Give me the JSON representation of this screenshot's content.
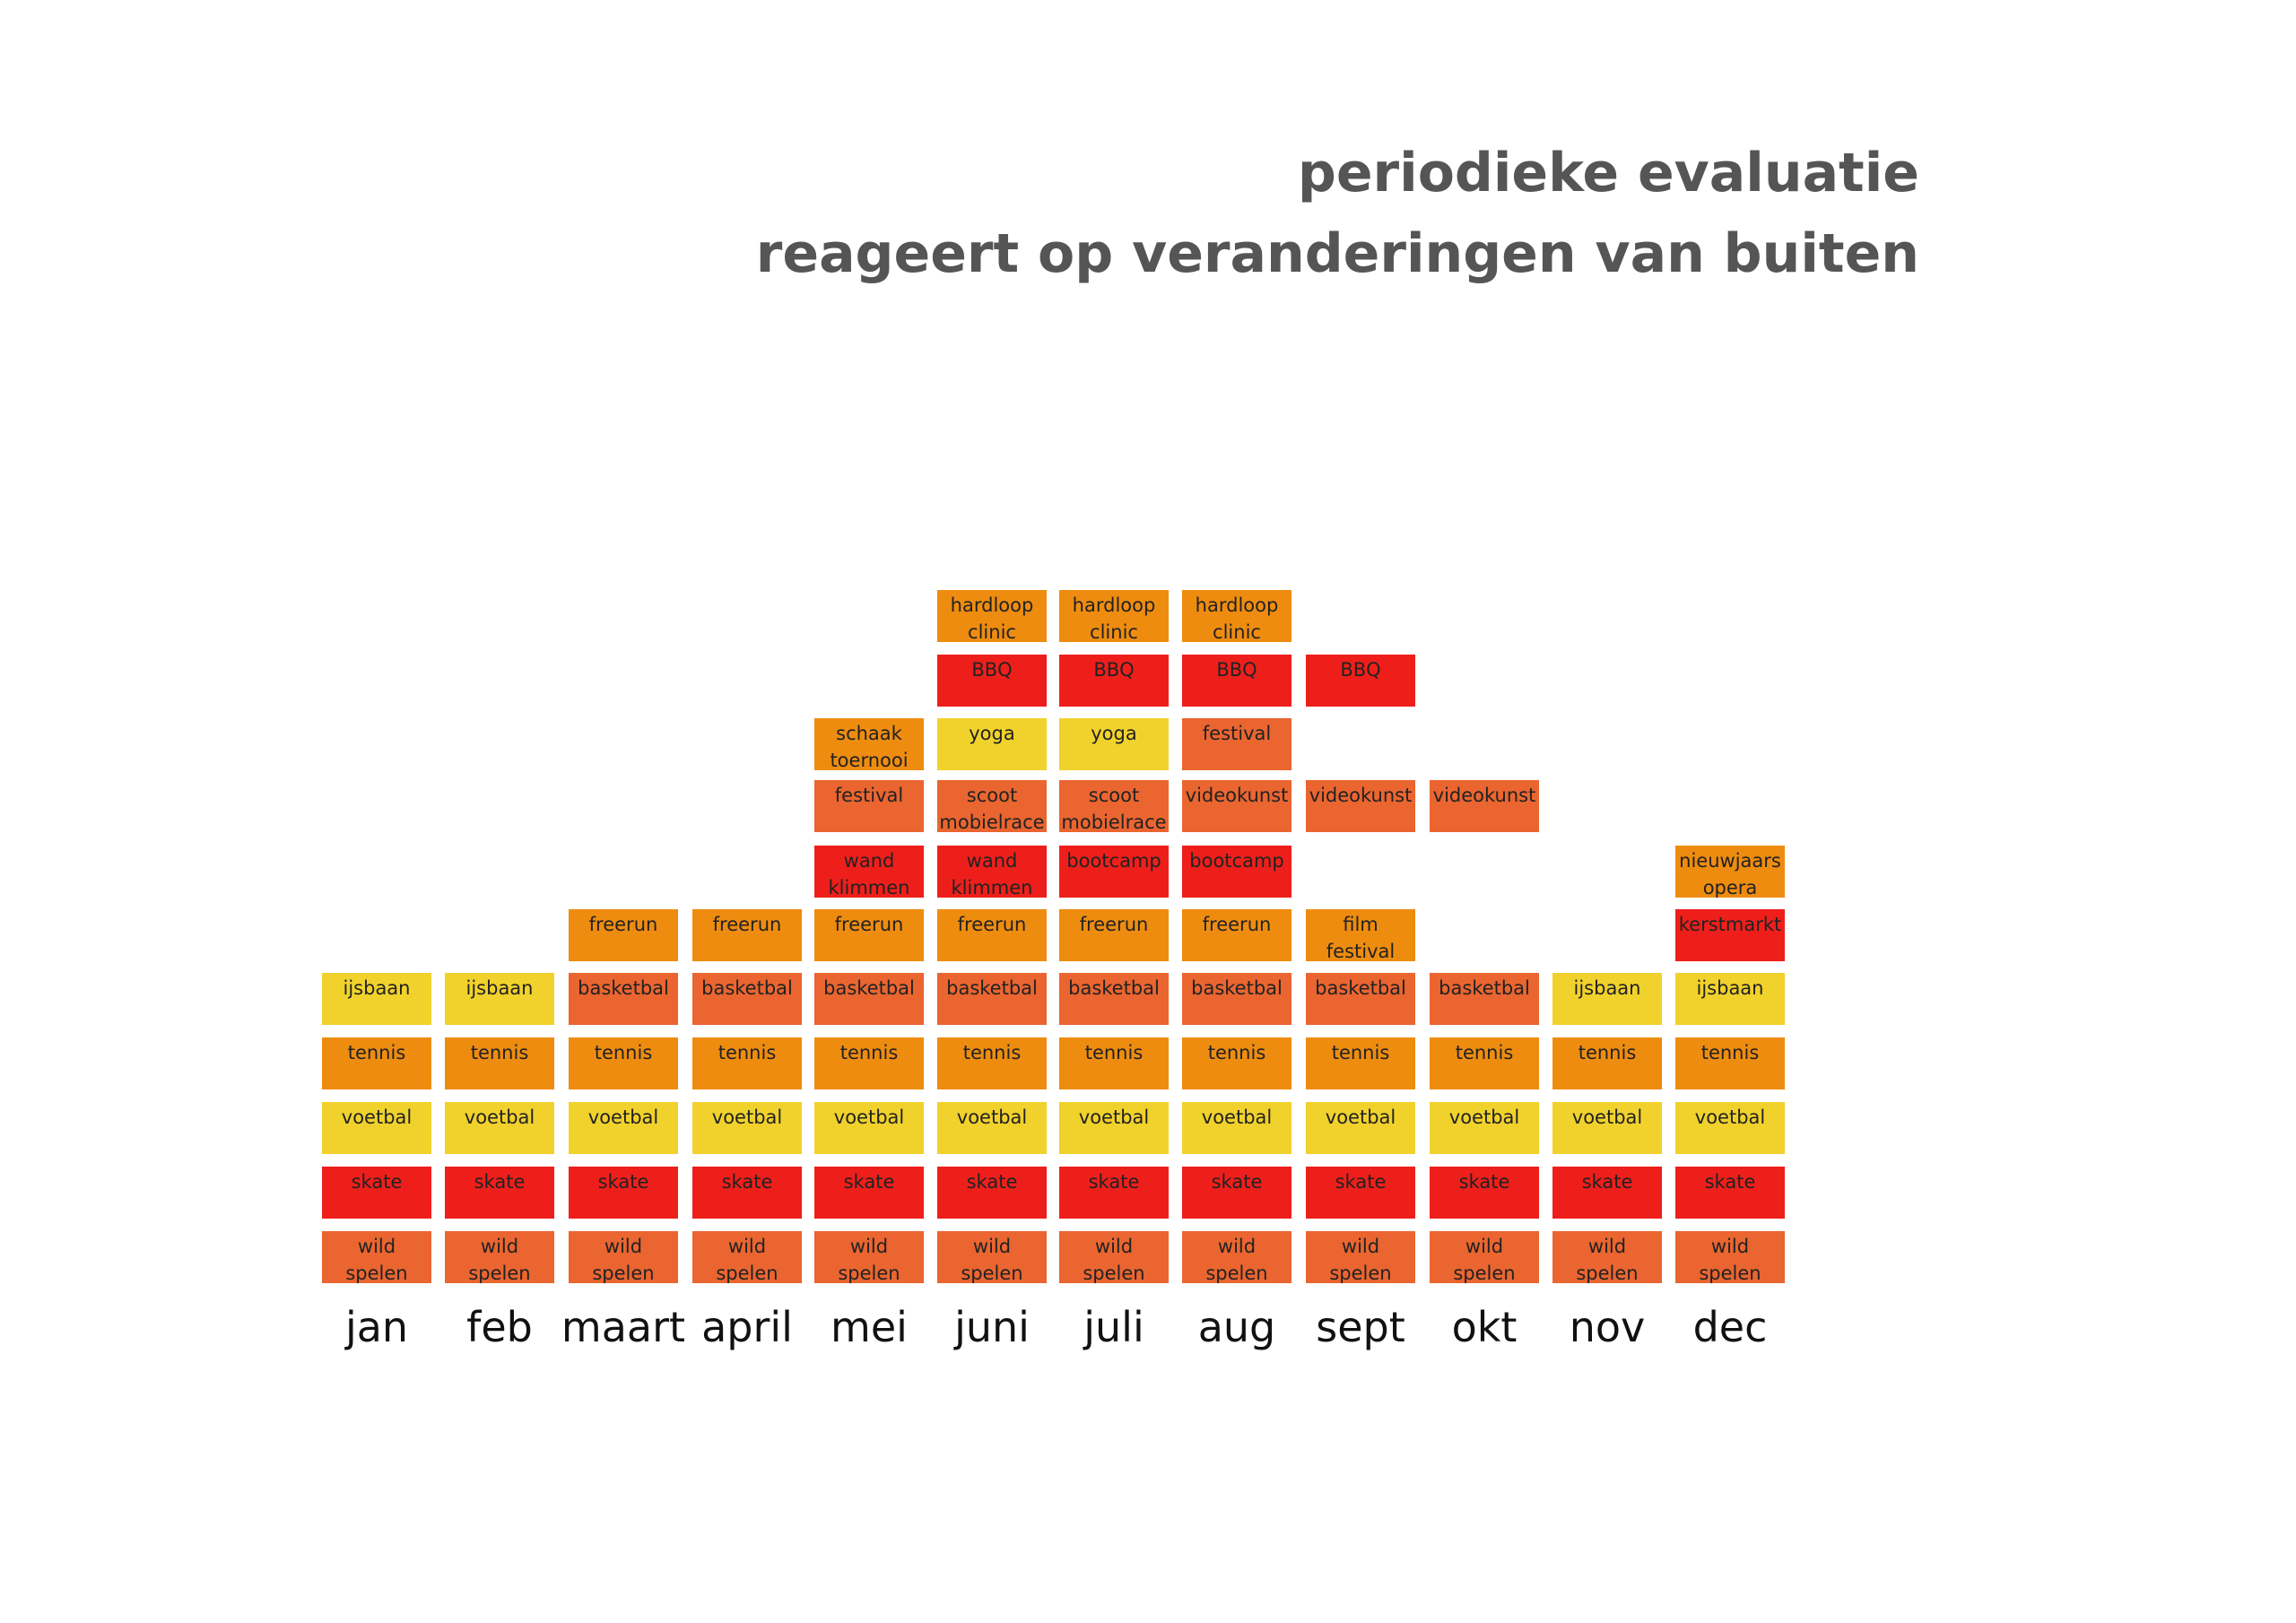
{
  "title": {
    "line1": "periodieke evaluatie",
    "line2": "reageert op veranderingen van buiten"
  },
  "colors": {
    "yellow": "#F1D22C",
    "orange": "#EE8C10",
    "coral": "#EA6530",
    "red": "#EE1F1B"
  },
  "months": [
    "jan",
    "feb",
    "maart",
    "april",
    "mei",
    "juni",
    "juli",
    "aug",
    "sept",
    "okt",
    "nov",
    "dec"
  ],
  "columns": [
    {
      "month": "jan",
      "activities": [
        {
          "label": "wild spelen",
          "color": "coral"
        },
        {
          "label": "skate",
          "color": "red"
        },
        {
          "label": "voetbal",
          "color": "yellow"
        },
        {
          "label": "tennis",
          "color": "orange"
        },
        {
          "label": "ijsbaan",
          "color": "yellow"
        }
      ]
    },
    {
      "month": "feb",
      "activities": [
        {
          "label": "wild spelen",
          "color": "coral"
        },
        {
          "label": "skate",
          "color": "red"
        },
        {
          "label": "voetbal",
          "color": "yellow"
        },
        {
          "label": "tennis",
          "color": "orange"
        },
        {
          "label": "ijsbaan",
          "color": "yellow"
        }
      ]
    },
    {
      "month": "maart",
      "activities": [
        {
          "label": "wild spelen",
          "color": "coral"
        },
        {
          "label": "skate",
          "color": "red"
        },
        {
          "label": "voetbal",
          "color": "yellow"
        },
        {
          "label": "tennis",
          "color": "orange"
        },
        {
          "label": "basketbal",
          "color": "coral"
        },
        {
          "label": "freerun",
          "color": "orange"
        }
      ]
    },
    {
      "month": "april",
      "activities": [
        {
          "label": "wild spelen",
          "color": "coral"
        },
        {
          "label": "skate",
          "color": "red"
        },
        {
          "label": "voetbal",
          "color": "yellow"
        },
        {
          "label": "tennis",
          "color": "orange"
        },
        {
          "label": "basketbal",
          "color": "coral"
        },
        {
          "label": "freerun",
          "color": "orange"
        }
      ]
    },
    {
      "month": "mei",
      "activities": [
        {
          "label": "wild spelen",
          "color": "coral"
        },
        {
          "label": "skate",
          "color": "red"
        },
        {
          "label": "voetbal",
          "color": "yellow"
        },
        {
          "label": "tennis",
          "color": "orange"
        },
        {
          "label": "basketbal",
          "color": "coral"
        },
        {
          "label": "freerun",
          "color": "orange"
        },
        {
          "label": "wand klimmen",
          "color": "red"
        },
        {
          "label": "festival",
          "color": "coral"
        },
        {
          "label": "schaak toernooi",
          "color": "orange"
        }
      ]
    },
    {
      "month": "juni",
      "activities": [
        {
          "label": "wild spelen",
          "color": "coral"
        },
        {
          "label": "skate",
          "color": "red"
        },
        {
          "label": "voetbal",
          "color": "yellow"
        },
        {
          "label": "tennis",
          "color": "orange"
        },
        {
          "label": "basketbal",
          "color": "coral"
        },
        {
          "label": "freerun",
          "color": "orange"
        },
        {
          "label": "wand klimmen",
          "color": "red"
        },
        {
          "label": "scoot mobielrace",
          "color": "coral"
        },
        {
          "label": "yoga",
          "color": "yellow"
        },
        {
          "label": "BBQ",
          "color": "red"
        },
        {
          "label": "hardloop clinic",
          "color": "orange"
        }
      ]
    },
    {
      "month": "juli",
      "activities": [
        {
          "label": "wild spelen",
          "color": "coral"
        },
        {
          "label": "skate",
          "color": "red"
        },
        {
          "label": "voetbal",
          "color": "yellow"
        },
        {
          "label": "tennis",
          "color": "orange"
        },
        {
          "label": "basketbal",
          "color": "coral"
        },
        {
          "label": "freerun",
          "color": "orange"
        },
        {
          "label": "bootcamp",
          "color": "red"
        },
        {
          "label": "scoot mobielrace",
          "color": "coral"
        },
        {
          "label": "yoga",
          "color": "yellow"
        },
        {
          "label": "BBQ",
          "color": "red"
        },
        {
          "label": "hardloop clinic",
          "color": "orange"
        }
      ]
    },
    {
      "month": "aug",
      "activities": [
        {
          "label": "wild spelen",
          "color": "coral"
        },
        {
          "label": "skate",
          "color": "red"
        },
        {
          "label": "voetbal",
          "color": "yellow"
        },
        {
          "label": "tennis",
          "color": "orange"
        },
        {
          "label": "basketbal",
          "color": "coral"
        },
        {
          "label": "freerun",
          "color": "orange"
        },
        {
          "label": "bootcamp",
          "color": "red"
        },
        {
          "label": "videokunst",
          "color": "coral"
        },
        {
          "label": "festival",
          "color": "coral"
        },
        {
          "label": "BBQ",
          "color": "red"
        },
        {
          "label": "hardloop clinic",
          "color": "orange"
        }
      ]
    },
    {
      "month": "sept",
      "activities": [
        {
          "label": "wild spelen",
          "color": "coral"
        },
        {
          "label": "skate",
          "color": "red"
        },
        {
          "label": "voetbal",
          "color": "yellow"
        },
        {
          "label": "tennis",
          "color": "orange"
        },
        {
          "label": "basketbal",
          "color": "coral"
        },
        {
          "label": "film festival",
          "color": "orange"
        },
        null,
        {
          "label": "videokunst",
          "color": "coral"
        },
        null,
        {
          "label": "BBQ",
          "color": "red"
        }
      ]
    },
    {
      "month": "okt",
      "activities": [
        {
          "label": "wild spelen",
          "color": "coral"
        },
        {
          "label": "skate",
          "color": "red"
        },
        {
          "label": "voetbal",
          "color": "yellow"
        },
        {
          "label": "tennis",
          "color": "orange"
        },
        {
          "label": "basketbal",
          "color": "coral"
        },
        null,
        null,
        {
          "label": "videokunst",
          "color": "coral"
        }
      ]
    },
    {
      "month": "nov",
      "activities": [
        {
          "label": "wild spelen",
          "color": "coral"
        },
        {
          "label": "skate",
          "color": "red"
        },
        {
          "label": "voetbal",
          "color": "yellow"
        },
        {
          "label": "tennis",
          "color": "orange"
        },
        {
          "label": "ijsbaan",
          "color": "yellow"
        }
      ]
    },
    {
      "month": "dec",
      "activities": [
        {
          "label": "wild spelen",
          "color": "coral"
        },
        {
          "label": "skate",
          "color": "red"
        },
        {
          "label": "voetbal",
          "color": "yellow"
        },
        {
          "label": "tennis",
          "color": "orange"
        },
        {
          "label": "ijsbaan",
          "color": "yellow"
        },
        {
          "label": "kerstmarkt",
          "color": "red"
        },
        {
          "label": "nieuwjaars opera",
          "color": "orange"
        }
      ]
    }
  ]
}
